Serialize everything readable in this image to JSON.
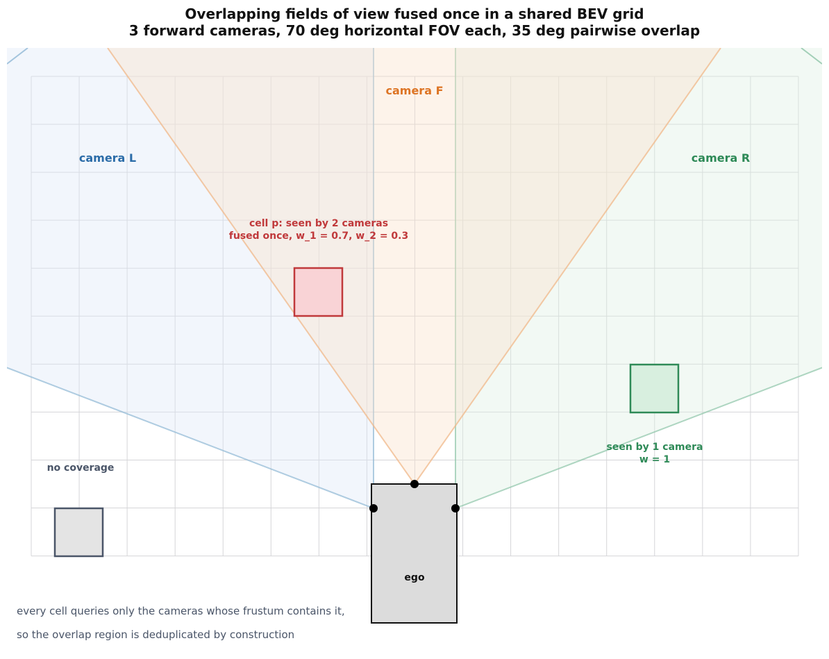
{
  "title_line1": "Overlapping fields of view fused once in a shared BEV grid",
  "title_line2": "3 forward cameras, 70 deg horizontal FOV each, 35 deg pairwise overlap",
  "cameras": {
    "left": {
      "label": "camera L",
      "color": "#2b6ca8"
    },
    "front": {
      "label": "camera F",
      "color": "#dd7424"
    },
    "right": {
      "label": "camera R",
      "color": "#2e8a57"
    }
  },
  "cell_p": {
    "line1": "cell p: seen by 2 cameras",
    "line2": "fused once, w_1 = 0.7, w_2 = 0.3",
    "color": "#c0393b"
  },
  "cell_single": {
    "line1": "seen by 1 camera",
    "line2": "w = 1",
    "color": "#2e8a57"
  },
  "cell_none": {
    "label": "no coverage",
    "color": "#4a5568"
  },
  "ego_label": "ego",
  "footnote": {
    "line1": "every cell queries only the cameras whose frustum contains it,",
    "line2": "so the overlap region is deduplicated by construction"
  }
}
